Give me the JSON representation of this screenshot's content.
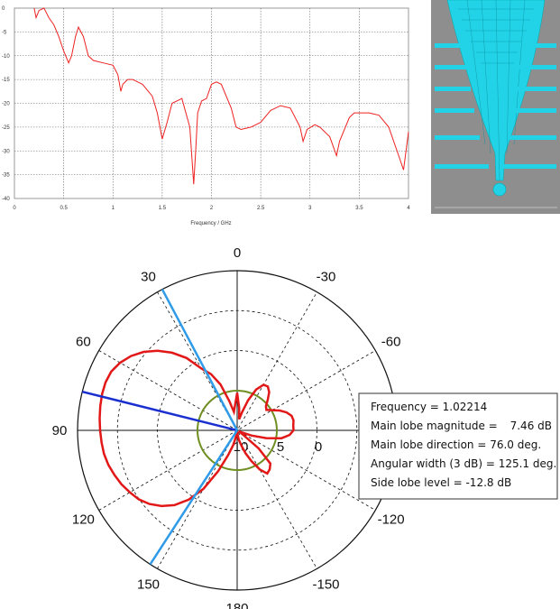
{
  "chart_data": [
    {
      "type": "line",
      "xlabel": "Frequency / GHz",
      "ylabel": "",
      "xlim": [
        0,
        4
      ],
      "ylim": [
        -40,
        0
      ],
      "xticks": [
        "0",
        "0.5",
        "1",
        "1.5",
        "2",
        "2.5",
        "3",
        "3.5",
        "4"
      ],
      "yticks": [
        "0",
        "-5",
        "-10",
        "-15",
        "-20",
        "-25",
        "-30",
        "-35",
        "-40"
      ],
      "grid": true,
      "line_color": "#ee2222",
      "series": [
        {
          "x": [
            0.2,
            0.22,
            0.25,
            0.3,
            0.35,
            0.4,
            0.45,
            0.5,
            0.55,
            0.58,
            0.62,
            0.65,
            0.7,
            0.75,
            0.8,
            0.9,
            1.0,
            1.05,
            1.08,
            1.1,
            1.15,
            1.2,
            1.3,
            1.4,
            1.45,
            1.5,
            1.55,
            1.6,
            1.7,
            1.78,
            1.82,
            1.84,
            1.86,
            1.9,
            1.95,
            2.0,
            2.05,
            2.1,
            2.2,
            2.25,
            2.3,
            2.4,
            2.5,
            2.6,
            2.7,
            2.8,
            2.9,
            2.93,
            2.97,
            3.05,
            3.1,
            3.2,
            3.27,
            3.3,
            3.4,
            3.45,
            3.5,
            3.6,
            3.7,
            3.8,
            3.9,
            3.95,
            4.0
          ],
          "y": [
            0,
            -2,
            -0.5,
            0,
            -2,
            -3.5,
            -6,
            -9,
            -11.5,
            -10,
            -6,
            -4,
            -6,
            -10,
            -11,
            -11.5,
            -12,
            -14,
            -17.5,
            -16,
            -15,
            -15,
            -16,
            -18.5,
            -22,
            -27.5,
            -24,
            -20,
            -19,
            -25,
            -37,
            -30,
            -22,
            -19.5,
            -19,
            -16,
            -15.5,
            -16,
            -21,
            -25,
            -25.5,
            -25,
            -24,
            -21.5,
            -20.5,
            -21,
            -25,
            -28,
            -25.5,
            -24.5,
            -25,
            -27,
            -31,
            -28,
            -23,
            -22,
            -22,
            -22,
            -22.5,
            -25,
            -31,
            -34,
            -26
          ]
        }
      ]
    },
    {
      "type": "line",
      "projection": "polar",
      "angular_ticks": [
        "0",
        "-30",
        "-60",
        "90",
        "-120",
        "-150",
        "180",
        "150",
        "120",
        "60",
        "30"
      ],
      "radial_ticks": [
        "10",
        "5",
        "0"
      ],
      "pattern_color": "#e21818",
      "reference_color": "#6f8f22",
      "series": [
        {
          "theta_deg": [
            0,
            10,
            15,
            20,
            25,
            30,
            35,
            40,
            45,
            50,
            55,
            60,
            65,
            70,
            75,
            80,
            85,
            90,
            95,
            100,
            105,
            110,
            115,
            120,
            125,
            130,
            135,
            140,
            145,
            150,
            155,
            160,
            165,
            170,
            175,
            180,
            185,
            190,
            195,
            200,
            205,
            210,
            215,
            220,
            225,
            230,
            235,
            240,
            245,
            250,
            255,
            260,
            265,
            270,
            275,
            280,
            285,
            290,
            295,
            300,
            305,
            310,
            315,
            320,
            325,
            330,
            335,
            340,
            345,
            350,
            355
          ],
          "r": [
            2.0,
            1.0,
            1.6,
            2.6,
            3.3,
            3.8,
            4.7,
            5.4,
            6.0,
            6.5,
            6.9,
            7.2,
            7.4,
            7.46,
            7.45,
            7.4,
            7.35,
            7.3,
            7.25,
            7.2,
            7.1,
            6.95,
            6.8,
            6.6,
            6.4,
            6.1,
            5.7,
            5.2,
            4.5,
            3.6,
            2.4,
            1.4,
            0.8,
            0.3,
            0.1,
            0.1,
            0.2,
            0.5,
            0.8,
            1.3,
            1.8,
            2.4,
            2.8,
            2.7,
            2.5,
            1.5,
            0.3,
            0.1,
            0.2,
            0.8,
            1.6,
            2.4,
            2.8,
            3.0,
            3.0,
            3.05,
            3.0,
            2.8,
            2.5,
            2.15,
            1.9,
            2.0,
            2.3,
            2.65,
            2.85,
            2.8,
            2.4,
            1.7,
            1.0,
            0.6,
            1.2
          ]
        }
      ],
      "info": {
        "frequency": "Frequency = 1.02214",
        "mainlobe_label": "Main lobe magnitude =",
        "mainlobe_value": "7.46 dB",
        "direction": "Main lobe direction =  76.0 deg.",
        "width": "Angular width (3 dB) =  125.1 deg.",
        "sidelobe": "Side lobe level =  -12.8 dB"
      }
    }
  ]
}
